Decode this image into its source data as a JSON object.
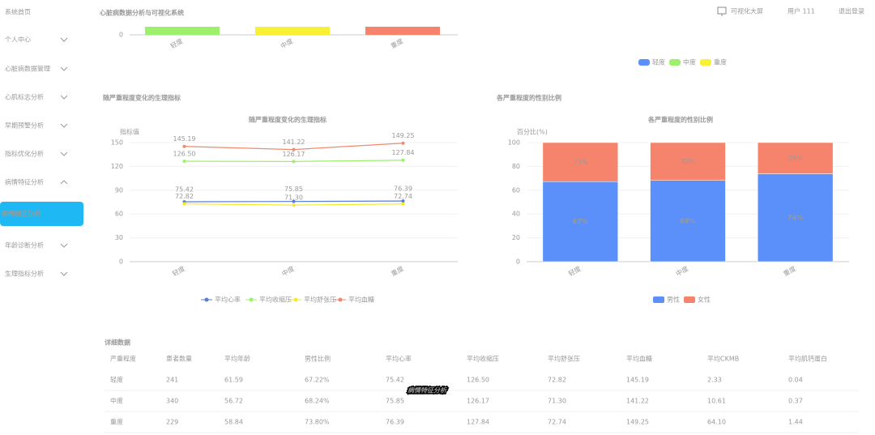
{
  "header": {
    "title": "心脏病数据分析与可视化系统",
    "screen_link": "可视化大屏",
    "user": "用户 111",
    "logout": "退出登录"
  },
  "sidebar": {
    "items": [
      "系统首页",
      "个人中心",
      "心脏病数据管理",
      "心肌标志分析",
      "早期预警分析",
      "指标优化分析",
      "病情特征分析",
      "病情特征分析",
      "年龄诊断分析",
      "生理指标分析"
    ]
  },
  "top_chart": {
    "categories": [
      "轻度",
      "中度",
      "重度"
    ],
    "yticks": [
      0
    ],
    "legend": [
      {
        "name": "轻度",
        "color": "#5b8ff9"
      },
      {
        "name": "中度",
        "color": "#9cf06b"
      },
      {
        "name": "重度",
        "color": "#f7f034"
      }
    ]
  },
  "line_chart": {
    "type": "line",
    "panel_title": "随严重程度变化的生理指标",
    "title": "随严重程度变化的生理指标",
    "ylabel": "指标值",
    "categories": [
      "轻度",
      "中度",
      "重度"
    ],
    "ylim": [
      0,
      150
    ],
    "yticks": [
      0,
      30,
      60,
      90,
      120,
      150
    ],
    "series": [
      {
        "name": "平均心率",
        "color": "#5b7bd5",
        "values": [
          75.42,
          75.85,
          76.39
        ],
        "value_labels": [
          "75.42",
          "75.85",
          "76.39"
        ]
      },
      {
        "name": "平均收缩压",
        "color": "#9cf06b",
        "values": [
          126.5,
          126.17,
          127.84
        ],
        "value_labels": [
          "126.50",
          "126.17",
          "127.84"
        ]
      },
      {
        "name": "平均舒张压",
        "color": "#f2ec2c",
        "values": [
          72.82,
          71.3,
          72.74
        ],
        "value_labels": [
          "72.82",
          "71.30",
          "72.74"
        ]
      },
      {
        "name": "平均血糖",
        "color": "#f08a6e",
        "values": [
          145.19,
          141.22,
          149.25
        ],
        "value_labels": [
          "145.19",
          "141.22",
          "149.25"
        ]
      }
    ]
  },
  "bar_chart": {
    "type": "stacked-bar",
    "panel_title": "各严重程度的性别比例",
    "title": "各严重程度的性别比例",
    "ylabel": "百分比(%)",
    "categories": [
      "轻度",
      "中度",
      "重度"
    ],
    "ylim": [
      0,
      100
    ],
    "yticks": [
      0,
      20,
      40,
      60,
      80,
      100
    ],
    "series": [
      {
        "name": "男性",
        "color": "#5b8ff9",
        "values": [
          67.22,
          68.24,
          73.8
        ],
        "value_labels": [
          "67%",
          "68%",
          "74%"
        ]
      },
      {
        "name": "女性",
        "color": "#f6836b",
        "values": [
          32.78,
          31.76,
          26.2
        ],
        "value_labels": [
          "33%",
          "32%",
          "26%"
        ]
      }
    ]
  },
  "table": {
    "title": "详细数据",
    "headers": [
      "严重程度",
      "患者数量",
      "平均年龄",
      "男性比例",
      "平均心率",
      "平均收缩压",
      "平均舒张压",
      "平均血糖",
      "平均CKMB",
      "平均肌钙蛋白"
    ],
    "rows": [
      [
        "轻度",
        "241",
        "61.59",
        "67.22%",
        "75.42",
        "126.50",
        "72.82",
        "145.19",
        "2.33",
        "0.04"
      ],
      [
        "中度",
        "340",
        "56.72",
        "68.24%",
        "75.85",
        "126.17",
        "71.30",
        "141.22",
        "10.61",
        "0.37"
      ],
      [
        "重度",
        "229",
        "58.84",
        "73.80%",
        "76.39",
        "127.84",
        "72.74",
        "149.25",
        "64.10",
        "1.44"
      ]
    ]
  },
  "caption": "病情特征分析"
}
